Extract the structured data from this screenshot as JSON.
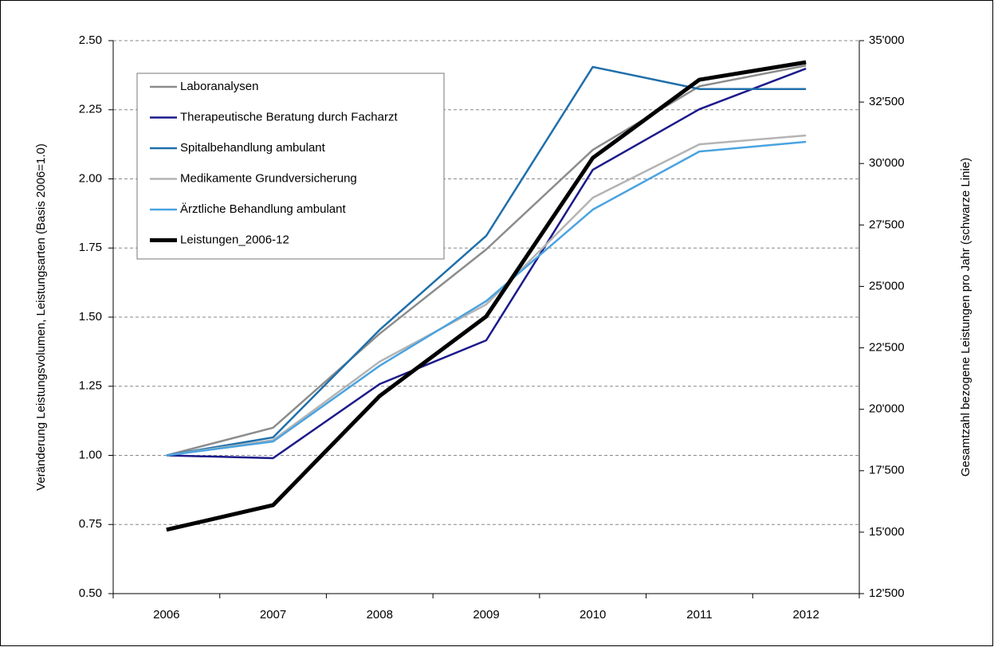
{
  "chart_data": {
    "type": "line",
    "categories": [
      "2006",
      "2007",
      "2008",
      "2009",
      "2010",
      "2011",
      "2012"
    ],
    "ylabel": "Veränderung Leistungsvolumen, Leistungsarten  (Basis 2006=1.0)",
    "y2label": "Gesamtzahl bezogene Leistungen pro Jahr (schwarze Linie)",
    "ylim": [
      0.5,
      2.5
    ],
    "yticks": [
      {
        "value": 0.5,
        "label": "0.50"
      },
      {
        "value": 0.75,
        "label": "0.75"
      },
      {
        "value": 1.0,
        "label": "1.00"
      },
      {
        "value": 1.25,
        "label": "1.25"
      },
      {
        "value": 1.5,
        "label": "1.50"
      },
      {
        "value": 1.75,
        "label": "1.75"
      },
      {
        "value": 2.0,
        "label": "2.00"
      },
      {
        "value": 2.25,
        "label": "2.25"
      },
      {
        "value": 2.5,
        "label": "2.50"
      }
    ],
    "y2lim": [
      12500,
      35000
    ],
    "y2ticks": [
      {
        "value": 12500,
        "label": "12'500"
      },
      {
        "value": 15000,
        "label": "15'000"
      },
      {
        "value": 17500,
        "label": "17'500"
      },
      {
        "value": 20000,
        "label": "20'000"
      },
      {
        "value": 22500,
        "label": "22'500"
      },
      {
        "value": 25000,
        "label": "25'000"
      },
      {
        "value": 27500,
        "label": "27'500"
      },
      {
        "value": 30000,
        "label": "30'000"
      },
      {
        "value": 32500,
        "label": "32'500"
      },
      {
        "value": 35000,
        "label": "35'000"
      }
    ],
    "grid": true,
    "legend": "upper left",
    "series": [
      {
        "name": "Laboranalysen",
        "color": "#8c8c8c",
        "values": [
          1.0,
          1.1,
          1.44,
          1.745,
          2.105,
          2.335,
          2.41
        ]
      },
      {
        "name": "Therapeutische Beratung durch Facharzt",
        "color": "#1c1a8a",
        "values": [
          1.0,
          0.99,
          1.258,
          1.416,
          2.033,
          2.252,
          2.399
        ]
      },
      {
        "name": "Spitalbehandlung ambulant",
        "color": "#1f6faa",
        "values": [
          1.0,
          1.065,
          1.454,
          1.794,
          2.405,
          2.325,
          2.325
        ]
      },
      {
        "name": "Medikamente Grundversicherung",
        "color": "#b4b4b4",
        "values": [
          1.0,
          1.055,
          1.339,
          1.546,
          1.932,
          2.125,
          2.157
        ]
      },
      {
        "name": "Ärztliche Behandlung ambulant",
        "color": "#4aa3e0",
        "values": [
          1.0,
          1.05,
          1.324,
          1.558,
          1.889,
          2.099,
          2.134
        ]
      },
      {
        "name": "Leistungen_2006-12",
        "color": "#000000",
        "axis": "y2",
        "values": [
          15100,
          16100,
          20540,
          23780,
          30230,
          33410,
          34120
        ]
      }
    ]
  }
}
